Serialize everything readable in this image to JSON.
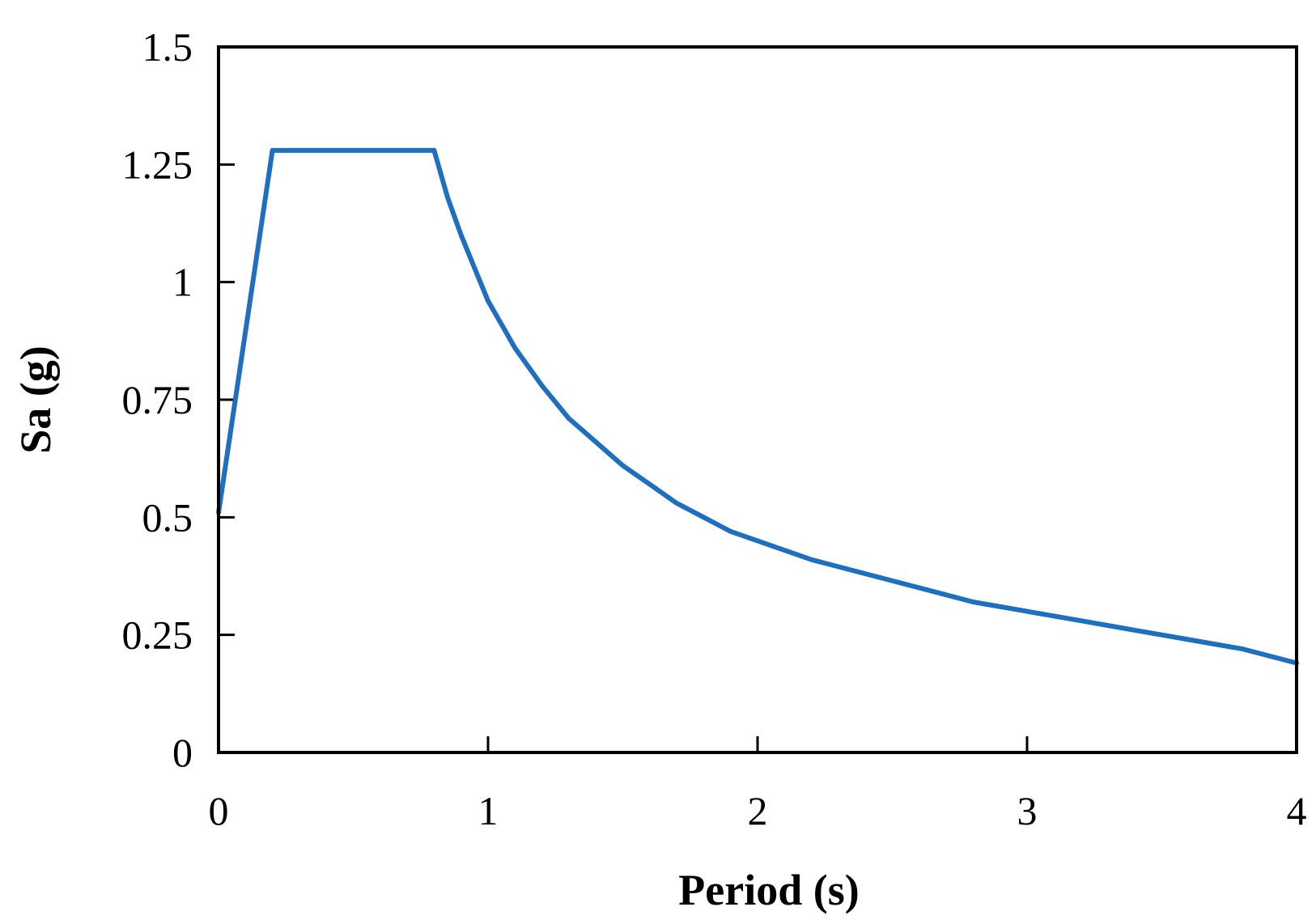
{
  "chart_data": {
    "type": "line",
    "title": "",
    "xlabel": "Period (s)",
    "ylabel": "Sa (g)",
    "xlim": [
      0,
      4
    ],
    "ylim": [
      0,
      1.5
    ],
    "xticks": [
      {
        "value": 0,
        "label": "0"
      },
      {
        "value": 1,
        "label": "1"
      },
      {
        "value": 2,
        "label": "2"
      },
      {
        "value": 3,
        "label": "3"
      },
      {
        "value": 4,
        "label": "4"
      }
    ],
    "yticks": [
      {
        "value": 0,
        "label": "0"
      },
      {
        "value": 0.25,
        "label": "0.25"
      },
      {
        "value": 0.5,
        "label": "0.5"
      },
      {
        "value": 0.75,
        "label": "0.75"
      },
      {
        "value": 1,
        "label": "1"
      },
      {
        "value": 1.25,
        "label": "1.25"
      },
      {
        "value": 1.5,
        "label": "1.5"
      }
    ],
    "grid": false,
    "legend": "none",
    "series": [
      {
        "color": "#1f6fc1",
        "x": [
          0,
          0.2,
          0.8,
          0.85,
          0.9,
          0.95,
          1.0,
          1.05,
          1.1,
          1.2,
          1.3,
          1.4,
          1.5,
          1.6,
          1.7,
          1.8,
          1.9,
          2.0,
          2.2,
          2.4,
          2.6,
          2.8,
          3.0,
          3.2,
          3.4,
          3.6,
          3.8,
          4.0
        ],
        "y": [
          0.51,
          1.28,
          1.28,
          1.18,
          1.1,
          1.03,
          0.96,
          0.91,
          0.86,
          0.78,
          0.71,
          0.66,
          0.61,
          0.57,
          0.53,
          0.5,
          0.47,
          0.45,
          0.41,
          0.38,
          0.35,
          0.32,
          0.3,
          0.28,
          0.26,
          0.24,
          0.22,
          0.19
        ]
      }
    ]
  }
}
